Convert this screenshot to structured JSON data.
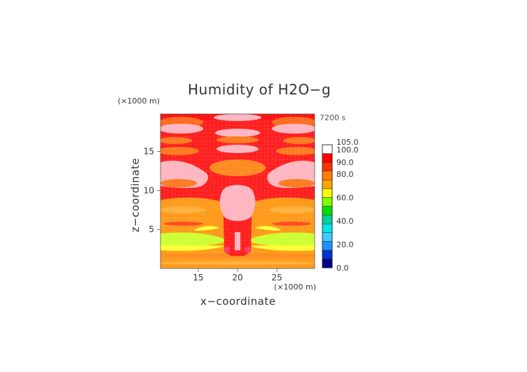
{
  "chart_data": {
    "type": "heatmap",
    "title": "Humidity of H2O−g",
    "scale_note_top": "(×1000 m)",
    "scale_note_bottom": "(×1000 m)",
    "time_label": "7200 s",
    "xlabel": "x−coordinate",
    "ylabel": "z−coordinate",
    "xlim": [
      10.2,
      29.8
    ],
    "ylim": [
      0,
      19.8
    ],
    "x_ticks": [
      15,
      20,
      25
    ],
    "y_ticks": [
      5,
      10,
      15
    ],
    "grid": true,
    "colorbar": {
      "labels": [
        "0.0",
        "20.0",
        "40.0",
        "60.0",
        "80.0",
        "90.0",
        "100.0",
        "105.0"
      ],
      "level_values": [
        0,
        20,
        40,
        60,
        80,
        90,
        100,
        105
      ],
      "colors": [
        "#00008b",
        "#0033cc",
        "#1e90ff",
        "#40c8ff",
        "#00e5e5",
        "#00d0a0",
        "#00e000",
        "#7fff00",
        "#ffff00",
        "#ffa500",
        "#ff7f00",
        "#ff3300",
        "#ff0000",
        "#ffffff"
      ]
    },
    "regions": [
      {
        "name": "background",
        "level": "90-100",
        "color": "#ff1f1f"
      },
      {
        "name": "upper saturated arcs",
        "level": ">100",
        "color": "#ffb6c1"
      },
      {
        "name": "upper side saturated lobes",
        "level": ">100",
        "color": "#ffb6c1"
      },
      {
        "name": "central saturated dome",
        "level": ">100",
        "color": "#ffb6c1"
      },
      {
        "name": "lower moist layer",
        "level": "80-90",
        "color": "#ff9a1a"
      },
      {
        "name": "dry band",
        "level": "60-80",
        "color": "#c8ff40"
      }
    ]
  }
}
